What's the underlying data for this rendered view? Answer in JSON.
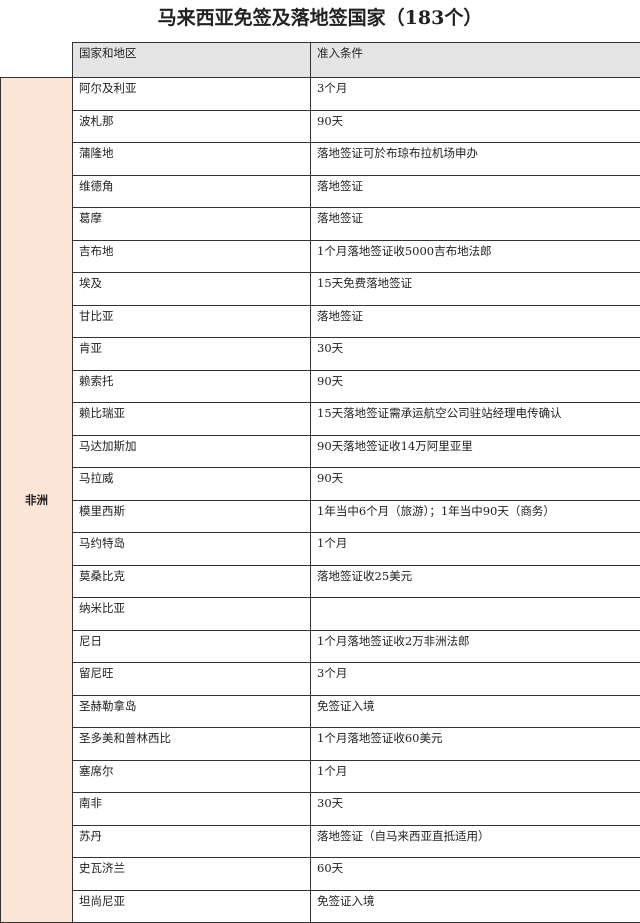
{
  "title": "马来西亚免签及落地签国家（183个）",
  "table": {
    "headers": [
      "国家和地区",
      "准入条件"
    ],
    "region": "非洲",
    "rows": [
      [
        "阿尔及利亚",
        "3个月"
      ],
      [
        "波札那",
        "90天"
      ],
      [
        "蒲隆地",
        "落地签证可於布琼布拉机场申办"
      ],
      [
        "维德角",
        "落地签证"
      ],
      [
        "葛摩",
        "落地签证"
      ],
      [
        "吉布地",
        "1个月落地签证收5000吉布地法郎"
      ],
      [
        "埃及",
        "15天免费落地签证"
      ],
      [
        "甘比亚",
        "落地签证"
      ],
      [
        "肯亚",
        "30天"
      ],
      [
        "赖索托",
        "90天"
      ],
      [
        "赖比瑞亚",
        "15天落地签证需承运航空公司驻站经理电传确认"
      ],
      [
        "马达加斯加",
        "90天落地签证收14万阿里亚里"
      ],
      [
        "马拉威",
        "90天"
      ],
      [
        "模里西斯",
        "1年当中6个月（旅游）；1年当中90天（商务）"
      ],
      [
        "马约特岛",
        "1个月"
      ],
      [
        "莫桑比克",
        "落地签证收25美元"
      ],
      [
        "纳米比亚",
        ""
      ],
      [
        "尼日",
        "1个月落地签证收2万非洲法郎"
      ],
      [
        "留尼旺",
        "3个月"
      ],
      [
        "圣赫勒拿岛",
        "免签证入境"
      ],
      [
        "圣多美和普林西比",
        "1个月落地签证收60美元"
      ],
      [
        "塞席尔",
        "1个月"
      ],
      [
        "南非",
        "30天"
      ],
      [
        "苏丹",
        "落地签证（自马来西亚直抵适用）"
      ],
      [
        "史瓦济兰",
        "60天"
      ],
      [
        "坦尚尼亚",
        "免签证入境"
      ]
    ]
  }
}
